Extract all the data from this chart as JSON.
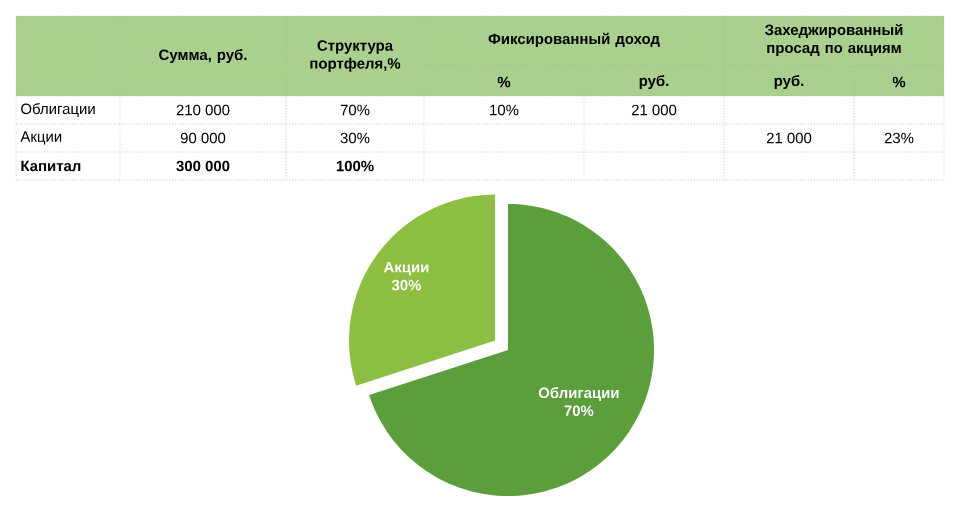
{
  "chart_data": [
    {
      "type": "other",
      "annotations": [
        "Сумма, руб.",
        "Структура портфеля,%",
        "Фиксированный доход",
        "Захеджированный просад по акциям",
        "%",
        "руб.",
        "руб.",
        "%",
        "Облигации",
        "210 000",
        "70%",
        "10%",
        "21 000",
        "Акции",
        "90 000",
        "30%",
        "21 000",
        "23%",
        "Капитал",
        "300 000",
        "100%"
      ]
    },
    {
      "type": "pie",
      "categories": [
        "Облигации",
        "Акции"
      ],
      "values": [
        70,
        30
      ],
      "colors": [
        "#5c9e3c",
        "#8dbf42"
      ],
      "value_labels": [
        "70%",
        "30%"
      ]
    }
  ]
}
